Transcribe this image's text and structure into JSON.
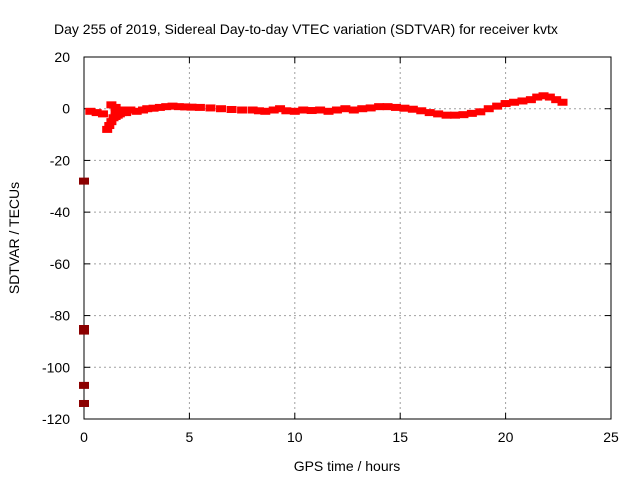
{
  "chart_data": {
    "type": "scatter",
    "title": "Day 255 of 2019, Sidereal Day-to-day VTEC variation (SDTVAR) for receiver kvtx",
    "xlabel": "GPS time / hours",
    "ylabel": "SDTVAR / TECUs",
    "xlim": [
      0,
      25
    ],
    "ylim": [
      -120,
      20
    ],
    "x_ticks": [
      0,
      5,
      10,
      15,
      20,
      25
    ],
    "y_ticks": [
      -120,
      -100,
      -80,
      -60,
      -40,
      -20,
      0,
      20
    ],
    "x_tick_labels": [
      "0",
      "5",
      "10",
      "15",
      "20",
      "25"
    ],
    "y_tick_labels": [
      "-120",
      "-100",
      "-80",
      "-60",
      "-40",
      "-20",
      "0",
      "20"
    ],
    "grid": true,
    "series": [
      {
        "color": "#ff0000",
        "marker": "error-bar",
        "points": [
          [
            0.3,
            -1.0
          ],
          [
            0.6,
            -1.5
          ],
          [
            0.9,
            -2.0
          ],
          [
            1.1,
            -8.0
          ],
          [
            1.2,
            -6.5
          ],
          [
            1.3,
            -5.0
          ],
          [
            1.4,
            -3.5
          ],
          [
            1.5,
            -3.0
          ],
          [
            1.6,
            -2.5
          ],
          [
            1.7,
            -2.0
          ],
          [
            1.8,
            -1.5
          ],
          [
            1.3,
            1.5
          ],
          [
            1.5,
            0.5
          ],
          [
            1.5,
            -1.0
          ],
          [
            1.8,
            -0.5
          ],
          [
            2.0,
            -1.5
          ],
          [
            2.2,
            -0.5
          ],
          [
            2.5,
            -1.0
          ],
          [
            2.8,
            -0.5
          ],
          [
            3.0,
            0.0
          ],
          [
            3.3,
            0.2
          ],
          [
            3.6,
            0.5
          ],
          [
            3.9,
            0.8
          ],
          [
            4.2,
            1.0
          ],
          [
            4.5,
            0.8
          ],
          [
            4.8,
            0.7
          ],
          [
            5.1,
            0.6
          ],
          [
            5.5,
            0.5
          ],
          [
            6.0,
            0.3
          ],
          [
            6.5,
            0.0
          ],
          [
            7.0,
            -0.3
          ],
          [
            7.5,
            -0.5
          ],
          [
            8.0,
            -0.5
          ],
          [
            8.3,
            -0.8
          ],
          [
            8.6,
            -1.0
          ],
          [
            9.0,
            -0.5
          ],
          [
            9.3,
            0.0
          ],
          [
            9.6,
            -0.8
          ],
          [
            10.0,
            -1.0
          ],
          [
            10.4,
            -0.5
          ],
          [
            10.8,
            -0.7
          ],
          [
            11.2,
            -0.5
          ],
          [
            11.6,
            -1.0
          ],
          [
            12.0,
            -0.5
          ],
          [
            12.4,
            0.0
          ],
          [
            12.8,
            -0.5
          ],
          [
            13.2,
            0.0
          ],
          [
            13.6,
            0.3
          ],
          [
            14.0,
            0.8
          ],
          [
            14.4,
            0.8
          ],
          [
            14.8,
            0.5
          ],
          [
            15.2,
            0.2
          ],
          [
            15.6,
            -0.2
          ],
          [
            16.0,
            -0.8
          ],
          [
            16.4,
            -1.5
          ],
          [
            16.8,
            -2.0
          ],
          [
            17.2,
            -2.5
          ],
          [
            17.6,
            -2.5
          ],
          [
            18.0,
            -2.3
          ],
          [
            18.4,
            -1.8
          ],
          [
            18.8,
            -1.2
          ],
          [
            19.2,
            0.0
          ],
          [
            19.6,
            1.0
          ],
          [
            20.0,
            2.0
          ],
          [
            20.4,
            2.5
          ],
          [
            20.8,
            3.0
          ],
          [
            21.2,
            3.5
          ],
          [
            21.5,
            4.5
          ],
          [
            21.8,
            5.0
          ],
          [
            22.1,
            4.5
          ],
          [
            22.4,
            3.5
          ],
          [
            22.7,
            2.5
          ]
        ]
      },
      {
        "color": "#8b0000",
        "marker": "error-bar",
        "points": [
          [
            0.0,
            -28.0
          ],
          [
            0.0,
            -85.0
          ],
          [
            0.0,
            -86.0
          ],
          [
            0.0,
            -107.0
          ],
          [
            0.0,
            -114.0
          ]
        ]
      }
    ]
  }
}
